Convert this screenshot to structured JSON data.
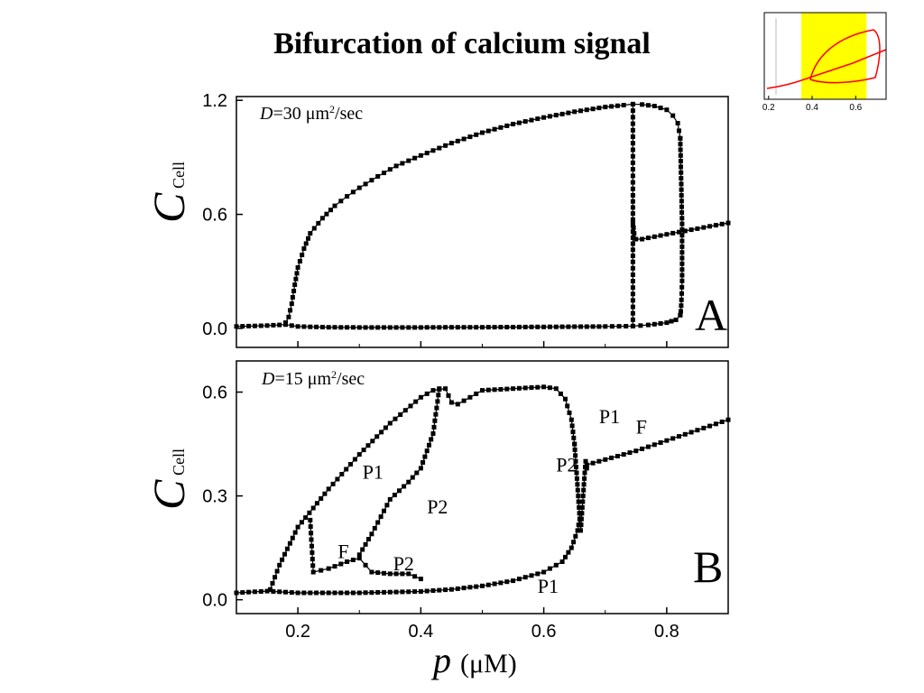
{
  "page": {
    "title": "Bifurcation of calcium signal"
  },
  "x_axis": {
    "symbol": "p",
    "unit": "(μM)",
    "ticks": [
      0.2,
      0.4,
      0.6,
      0.8
    ],
    "xlim": [
      0.1,
      0.9
    ]
  },
  "inset": {
    "ticks": [
      "0.2",
      "0.4",
      "0.6"
    ],
    "highlight_color": "#ffff00",
    "curve_color": "#ff0000",
    "xlim": [
      0.18,
      0.74
    ],
    "highlight_range": [
      0.35,
      0.65
    ]
  },
  "chart_data": [
    {
      "type": "line",
      "panel_letter": "A",
      "annotation": {
        "D": "D",
        "value": "=30 μm",
        "exp": "2",
        "unit": "/sec"
      },
      "ylabel": {
        "symbol": "C",
        "subscript": "Cell"
      },
      "yticks": [
        "0.0",
        "0.6",
        "1.2"
      ],
      "ylim": [
        -0.1,
        1.22
      ],
      "xlim": [
        0.1,
        0.9
      ],
      "series": [
        {
          "x": [
            0.1,
            0.15,
            0.18,
            0.2,
            0.25,
            0.3,
            0.35,
            0.4,
            0.45,
            0.5,
            0.55,
            0.6,
            0.65,
            0.7,
            0.745,
            0.77,
            0.8,
            0.815,
            0.822
          ],
          "y": [
            0.01,
            0.015,
            0.02,
            0.01,
            0.006,
            0.005,
            0.005,
            0.005,
            0.006,
            0.006,
            0.007,
            0.008,
            0.009,
            0.01,
            0.012,
            0.018,
            0.03,
            0.045,
            0.07
          ]
        },
        {
          "x": [
            0.18,
            0.185,
            0.19,
            0.195,
            0.2,
            0.21,
            0.22,
            0.24,
            0.26,
            0.28,
            0.3,
            0.33,
            0.36,
            0.4,
            0.45,
            0.5,
            0.55,
            0.6,
            0.65,
            0.7,
            0.73,
            0.745,
            0.76,
            0.78,
            0.8,
            0.81,
            0.818,
            0.822
          ],
          "y": [
            0.03,
            0.06,
            0.13,
            0.23,
            0.32,
            0.42,
            0.5,
            0.58,
            0.645,
            0.695,
            0.74,
            0.8,
            0.855,
            0.91,
            0.975,
            1.03,
            1.075,
            1.11,
            1.14,
            1.165,
            1.175,
            1.18,
            1.178,
            1.17,
            1.15,
            1.12,
            1.08,
            1.0
          ]
        },
        {
          "x": [
            0.822,
            0.823,
            0.824,
            0.825,
            0.825,
            0.825,
            0.824,
            0.823,
            0.822
          ],
          "y": [
            1.0,
            0.85,
            0.7,
            0.55,
            0.4,
            0.25,
            0.15,
            0.09,
            0.07
          ]
        },
        {
          "x": [
            0.745,
            0.745,
            0.745,
            0.745
          ],
          "y": [
            1.18,
            0.7,
            0.35,
            0.012
          ]
        },
        {
          "x": [
            0.745,
            0.747,
            0.75,
            0.76,
            0.8,
            0.85,
            0.9
          ],
          "y": [
            0.56,
            0.5,
            0.47,
            0.47,
            0.495,
            0.525,
            0.555
          ]
        }
      ]
    },
    {
      "type": "line",
      "panel_letter": "B",
      "annotation": {
        "D": "D",
        "value": "=15 μm",
        "exp": "2",
        "unit": "/sec"
      },
      "ylabel": {
        "symbol": "C",
        "subscript": "Cell"
      },
      "yticks": [
        "0.0",
        "0.3",
        "0.6"
      ],
      "ylim": [
        -0.04,
        0.69
      ],
      "xlim": [
        0.1,
        0.9
      ],
      "labels": [
        {
          "text": "P1",
          "x": 0.305,
          "y": 0.35
        },
        {
          "text": "P2",
          "x": 0.41,
          "y": 0.25
        },
        {
          "text": "F",
          "x": 0.265,
          "y": 0.12
        },
        {
          "text": "P2",
          "x": 0.355,
          "y": 0.085
        },
        {
          "text": "P1",
          "x": 0.59,
          "y": 0.02
        },
        {
          "text": "P1",
          "x": 0.69,
          "y": 0.51
        },
        {
          "text": "P2",
          "x": 0.62,
          "y": 0.37
        },
        {
          "text": "F",
          "x": 0.75,
          "y": 0.48
        }
      ],
      "series": [
        {
          "x": [
            0.1,
            0.15,
            0.2,
            0.25,
            0.3,
            0.35,
            0.4,
            0.45,
            0.5,
            0.55,
            0.6,
            0.63,
            0.645,
            0.655,
            0.66
          ],
          "y": [
            0.02,
            0.025,
            0.02,
            0.02,
            0.02,
            0.022,
            0.024,
            0.03,
            0.04,
            0.055,
            0.08,
            0.11,
            0.15,
            0.2,
            0.25
          ]
        },
        {
          "x": [
            0.155,
            0.17,
            0.2,
            0.25,
            0.3,
            0.35,
            0.4,
            0.42,
            0.44,
            0.45,
            0.46,
            0.48,
            0.5,
            0.55,
            0.6,
            0.62,
            0.635,
            0.645,
            0.65
          ],
          "y": [
            0.03,
            0.1,
            0.21,
            0.32,
            0.42,
            0.51,
            0.585,
            0.605,
            0.61,
            0.57,
            0.565,
            0.585,
            0.605,
            0.61,
            0.615,
            0.61,
            0.58,
            0.52,
            0.45
          ]
        },
        {
          "x": [
            0.65,
            0.652,
            0.654,
            0.656,
            0.658,
            0.66,
            0.662,
            0.664,
            0.666,
            0.668,
            0.67
          ],
          "y": [
            0.45,
            0.4,
            0.35,
            0.3,
            0.25,
            0.2,
            0.25,
            0.3,
            0.35,
            0.4,
            0.38
          ]
        },
        {
          "x": [
            0.67,
            0.7,
            0.75,
            0.8,
            0.85,
            0.9
          ],
          "y": [
            0.39,
            0.405,
            0.43,
            0.46,
            0.49,
            0.52
          ]
        },
        {
          "x": [
            0.22,
            0.225,
            0.25,
            0.28,
            0.3,
            0.31,
            0.32,
            0.35,
            0.38,
            0.4
          ],
          "y": [
            0.23,
            0.08,
            0.09,
            0.11,
            0.12,
            0.1,
            0.08,
            0.075,
            0.075,
            0.06
          ]
        },
        {
          "x": [
            0.3,
            0.32,
            0.35,
            0.38,
            0.4,
            0.42,
            0.43
          ],
          "y": [
            0.13,
            0.19,
            0.29,
            0.34,
            0.38,
            0.48,
            0.61
          ]
        }
      ]
    }
  ]
}
